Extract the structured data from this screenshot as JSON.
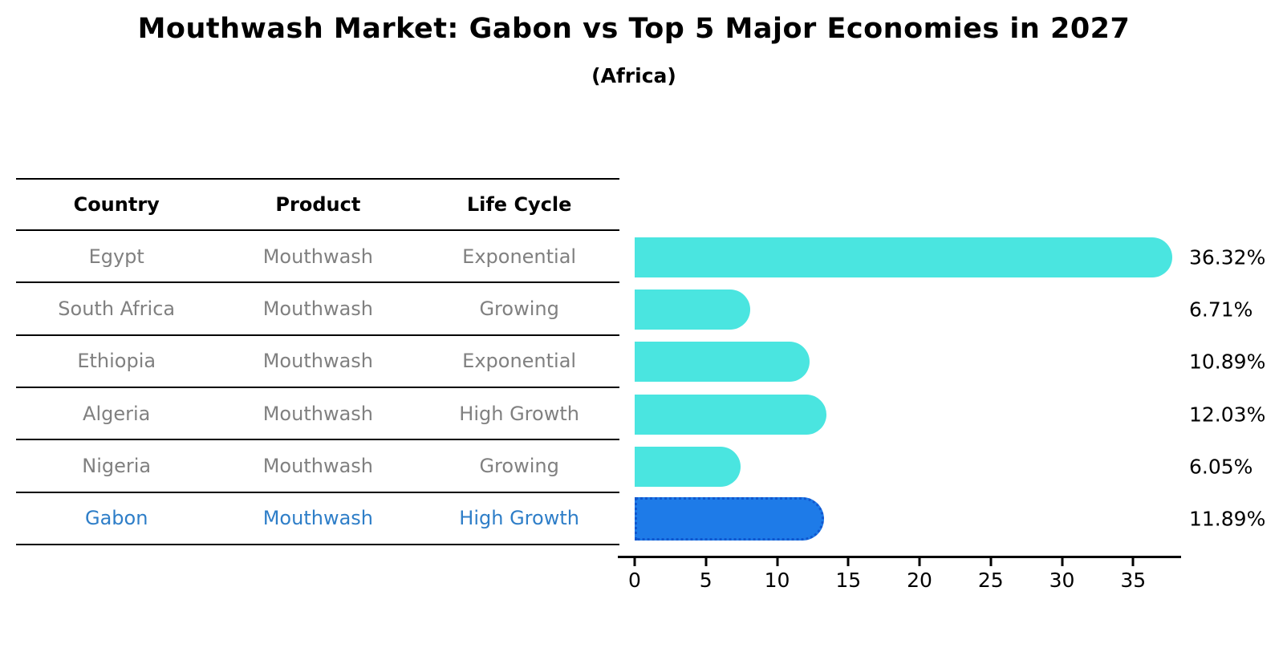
{
  "title": "Mouthwash Market: Gabon vs Top 5 Major Economies in 2027",
  "subtitle": "(Africa)",
  "table": {
    "headers": [
      "Country",
      "Product",
      "Life Cycle"
    ],
    "rows": [
      {
        "country": "Egypt",
        "product": "Mouthwash",
        "life_cycle": "Exponential"
      },
      {
        "country": "South Africa",
        "product": "Mouthwash",
        "life_cycle": "Growing"
      },
      {
        "country": "Ethiopia",
        "product": "Mouthwash",
        "life_cycle": "Exponential"
      },
      {
        "country": "Algeria",
        "product": "Mouthwash",
        "life_cycle": "High Growth"
      },
      {
        "country": "Nigeria",
        "product": "Mouthwash",
        "life_cycle": "Growing"
      },
      {
        "country": "Gabon",
        "product": "Mouthwash",
        "life_cycle": "High Growth"
      }
    ]
  },
  "chart_data": {
    "type": "bar",
    "orientation": "horizontal",
    "title": "Mouthwash Market: Gabon vs Top 5 Major Economies in 2027",
    "subtitle": "(Africa)",
    "categories": [
      "Egypt",
      "South Africa",
      "Ethiopia",
      "Algeria",
      "Nigeria",
      "Gabon"
    ],
    "values": [
      36.32,
      6.71,
      10.89,
      12.03,
      6.05,
      11.89
    ],
    "value_labels": [
      "36.32%",
      "6.71%",
      "10.89%",
      "12.03%",
      "6.05%",
      "11.89%"
    ],
    "x_ticks": [
      0,
      5,
      10,
      15,
      20,
      25,
      30,
      35
    ],
    "xlim": [
      0,
      38
    ],
    "grid": false,
    "legend": "none",
    "bar_color": "#4AE5E0",
    "highlight_bar_color": "#1E7BE8",
    "highlight_border_color": "#1157CF",
    "highlight_index": 5,
    "highlight_text_color": "#2E7EC8",
    "row_text_color": "#808080"
  }
}
